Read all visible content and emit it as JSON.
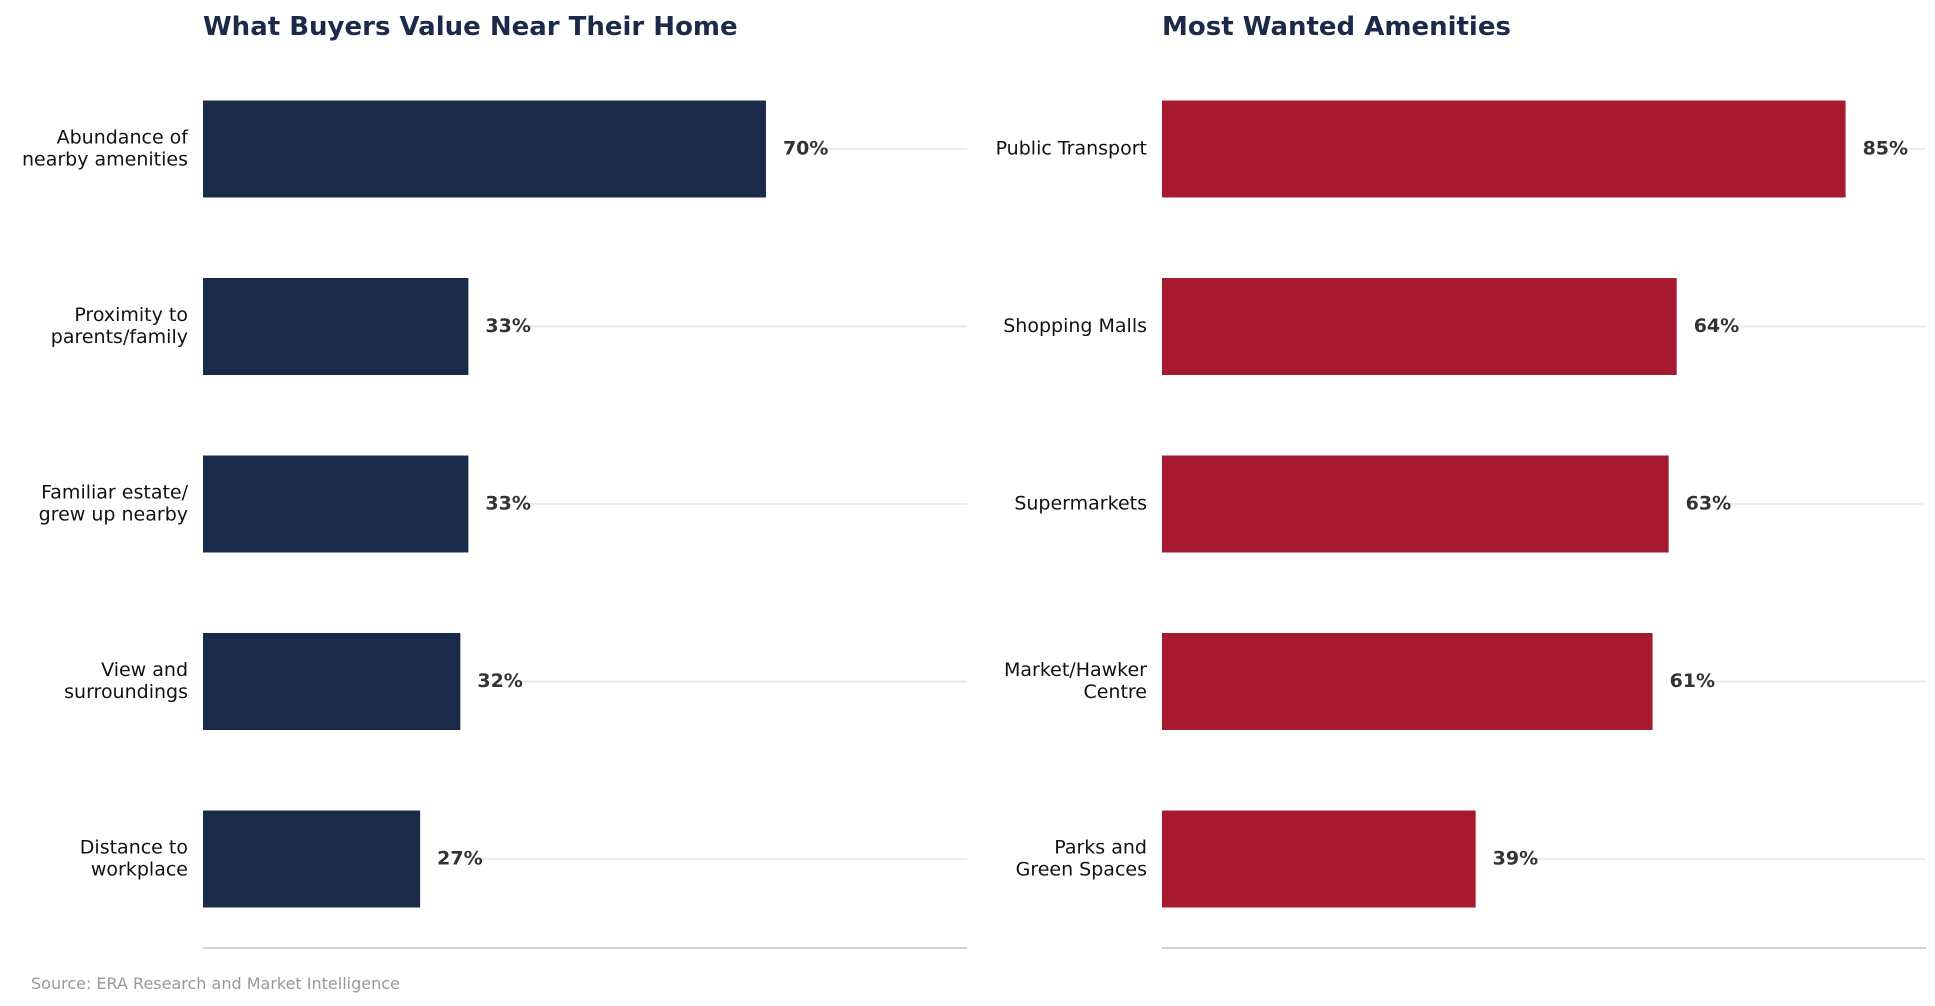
{
  "chart_data": [
    {
      "type": "bar",
      "orientation": "horizontal",
      "title": "What Buyers Value Near Their Home",
      "categories": [
        [
          "Abundance of",
          "nearby amenities"
        ],
        [
          "Proximity to",
          "parents/family"
        ],
        [
          "Familiar estate/",
          "grew up nearby"
        ],
        [
          "View and",
          "surroundings"
        ],
        [
          "Distance to",
          "workplace"
        ]
      ],
      "values": [
        70,
        33,
        33,
        32,
        27
      ],
      "value_labels": [
        "70%",
        "33%",
        "33%",
        "32%",
        "27%"
      ],
      "unit": "%",
      "xlim": [
        0,
        95
      ],
      "bar_color": "#1c2a4a",
      "grid": "horizontal-guides"
    },
    {
      "type": "bar",
      "orientation": "horizontal",
      "title": "Most Wanted Amenities",
      "categories": [
        [
          "Public Transport"
        ],
        [
          "Shopping Malls"
        ],
        [
          "Supermarkets"
        ],
        [
          "Market/Hawker",
          "Centre"
        ],
        [
          "Parks and",
          "Green Spaces"
        ]
      ],
      "values": [
        85,
        64,
        63,
        61,
        39
      ],
      "value_labels": [
        "85%",
        "64%",
        "63%",
        "61%",
        "39%"
      ],
      "unit": "%",
      "xlim": [
        0,
        95
      ],
      "bar_color": "#a6192e",
      "grid": "horizontal-guides"
    }
  ],
  "footer": {
    "source": "Source: ERA Research and Market Intelligence"
  }
}
